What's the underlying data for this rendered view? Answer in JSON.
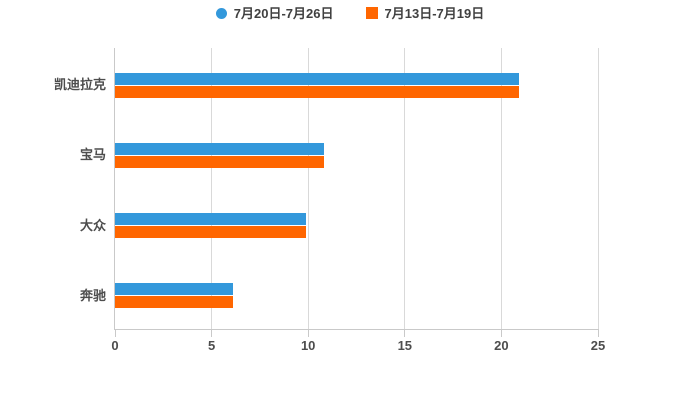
{
  "legend": {
    "items": [
      {
        "label": "7月20日-7月26日",
        "color": "#3398DB",
        "marker": "circle"
      },
      {
        "label": "7月13日-7月19日",
        "color": "#FF6600",
        "marker": "square"
      }
    ]
  },
  "chart_data": {
    "type": "bar",
    "orientation": "horizontal",
    "title": "",
    "xlabel": "",
    "ylabel": "",
    "categories": [
      "凯迪拉克",
      "宝马",
      "大众",
      "奔驰"
    ],
    "series": [
      {
        "name": "7月20日-7月26日",
        "color": "#3398DB",
        "values": [
          20.9,
          10.8,
          9.9,
          6.1
        ]
      },
      {
        "name": "7月13日-7月19日",
        "color": "#FF6600",
        "values": [
          20.9,
          10.8,
          9.9,
          6.1
        ]
      }
    ],
    "xlim": [
      0,
      25
    ],
    "xticks": [
      0,
      5,
      10,
      15,
      20,
      25
    ],
    "grid": true,
    "legend_position": "top"
  },
  "style": {
    "gridline_color": "#d9d9d9",
    "axis_color": "#c9c9c9",
    "label_color": "#4d4d4d",
    "legend_text_color": "#404040",
    "background": "#ffffff"
  }
}
